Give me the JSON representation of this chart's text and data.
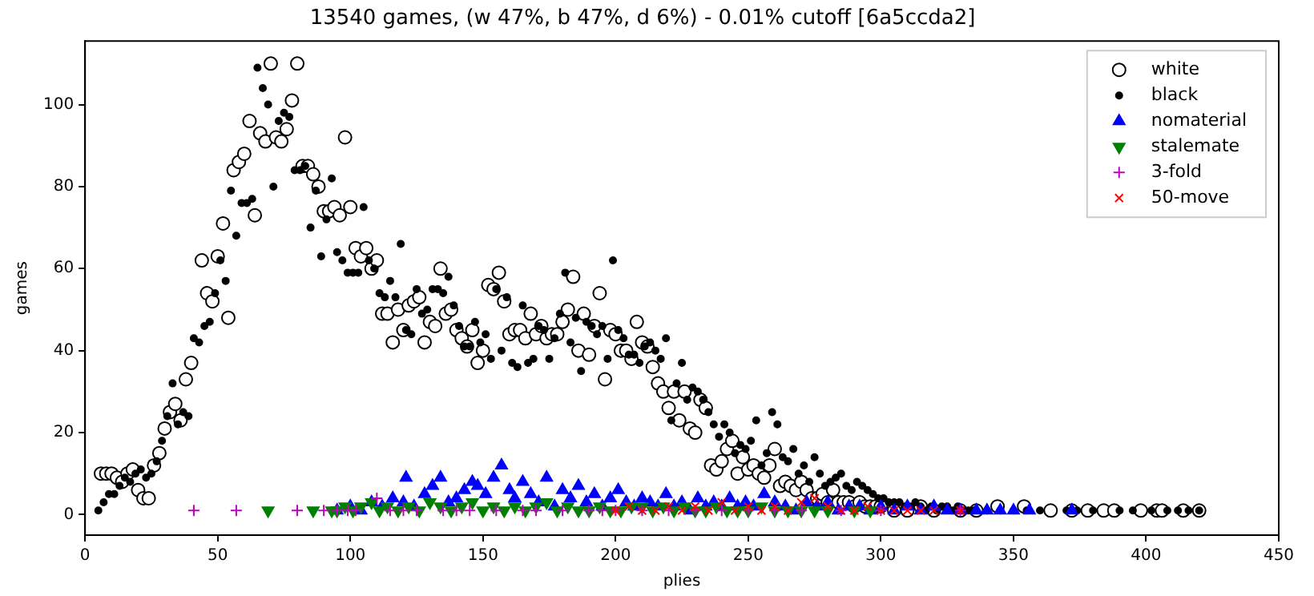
{
  "chart_data": {
    "type": "scatter",
    "title": "13540 games, (w 47%, b 47%, d 6%) - 0.01% cutoff [6a5ccda2]",
    "xlabel": "plies",
    "ylabel": "games",
    "xlim": [
      0,
      450
    ],
    "xticks": [
      0,
      50,
      100,
      150,
      200,
      250,
      300,
      350,
      400,
      450
    ],
    "ylim": [
      -5,
      115.5
    ],
    "yticks": [
      0,
      20,
      40,
      60,
      80,
      100
    ],
    "grid": false,
    "legend": "top right",
    "series": [
      {
        "name": "white",
        "color": "#ffffff",
        "marker": "circle",
        "x": [
          6,
          8,
          10,
          12,
          14,
          16,
          18,
          20,
          22,
          24,
          26,
          28,
          30,
          32,
          34,
          36,
          38,
          40,
          44,
          46,
          48,
          50,
          52,
          54,
          56,
          58,
          60,
          62,
          64,
          66,
          68,
          70,
          72,
          74,
          76,
          78,
          80,
          82,
          84,
          86,
          88,
          90,
          92,
          94,
          96,
          98,
          100,
          102,
          104,
          106,
          108,
          110,
          112,
          114,
          116,
          118,
          120,
          122,
          124,
          126,
          128,
          130,
          132,
          134,
          136,
          138,
          140,
          142,
          144,
          146,
          148,
          150,
          152,
          154,
          156,
          158,
          160,
          162,
          164,
          166,
          168,
          170,
          172,
          174,
          176,
          178,
          180,
          182,
          184,
          186,
          188,
          190,
          192,
          194,
          196,
          198,
          200,
          202,
          204,
          206,
          208,
          210,
          212,
          214,
          216,
          218,
          220,
          222,
          224,
          226,
          228,
          230,
          232,
          234,
          236,
          238,
          240,
          242,
          244,
          246,
          248,
          250,
          252,
          254,
          256,
          258,
          260,
          262,
          264,
          266,
          268,
          270,
          272,
          274,
          276,
          278,
          280,
          282,
          284,
          286,
          288,
          290,
          292,
          294,
          296,
          298,
          300,
          305,
          310,
          315,
          320,
          330,
          336,
          344,
          354,
          364,
          372,
          378,
          384,
          388,
          398,
          404,
          406,
          414,
          420
        ],
        "values": [
          10,
          10,
          10,
          9,
          8,
          10,
          11,
          6,
          4,
          4,
          12,
          15,
          21,
          25,
          27,
          23,
          33,
          37,
          62,
          54,
          52,
          63,
          71,
          48,
          84,
          86,
          88,
          96,
          73,
          93,
          91,
          110,
          92,
          91,
          94,
          101,
          110,
          85,
          85,
          83,
          80,
          74,
          74,
          75,
          73,
          92,
          75,
          65,
          63,
          65,
          60,
          62,
          49,
          49,
          42,
          50,
          45,
          51,
          52,
          53,
          42,
          47,
          46,
          60,
          49,
          50,
          45,
          43,
          41,
          45,
          37,
          40,
          56,
          55,
          59,
          52,
          44,
          45,
          45,
          43,
          49,
          44,
          46,
          43,
          44,
          44,
          47,
          50,
          58,
          40,
          49,
          39,
          46,
          54,
          33,
          45,
          44,
          40,
          40,
          38,
          47,
          42,
          41,
          36,
          32,
          30,
          26,
          30,
          23,
          30,
          21,
          20,
          28,
          26,
          12,
          11,
          13,
          16,
          18,
          10,
          14,
          11,
          12,
          10,
          9,
          12,
          16,
          7,
          8,
          7,
          6,
          8,
          6,
          4,
          4,
          5,
          3,
          6,
          3,
          3,
          3,
          2,
          3,
          2,
          2,
          2,
          2,
          1,
          1,
          2,
          1,
          1,
          1,
          2,
          2,
          1,
          1,
          1,
          1,
          1,
          1,
          1,
          1,
          1,
          1
        ]
      },
      {
        "name": "black",
        "color": "#000000",
        "marker": "point",
        "x": [
          5,
          7,
          9,
          11,
          13,
          15,
          17,
          19,
          21,
          23,
          25,
          27,
          29,
          31,
          33,
          35,
          37,
          39,
          41,
          43,
          45,
          47,
          49,
          51,
          53,
          55,
          57,
          59,
          61,
          63,
          65,
          67,
          69,
          71,
          73,
          75,
          77,
          79,
          81,
          83,
          85,
          87,
          89,
          91,
          93,
          95,
          97,
          99,
          101,
          103,
          105,
          107,
          109,
          111,
          113,
          115,
          117,
          119,
          121,
          123,
          125,
          127,
          129,
          131,
          133,
          135,
          137,
          139,
          141,
          143,
          145,
          147,
          149,
          151,
          153,
          155,
          157,
          159,
          161,
          163,
          165,
          167,
          169,
          171,
          173,
          175,
          177,
          179,
          181,
          183,
          185,
          187,
          189,
          191,
          193,
          195,
          197,
          199,
          201,
          203,
          205,
          207,
          209,
          211,
          213,
          215,
          217,
          219,
          221,
          223,
          225,
          227,
          229,
          231,
          233,
          235,
          237,
          239,
          241,
          243,
          245,
          247,
          249,
          251,
          253,
          255,
          257,
          259,
          261,
          263,
          265,
          267,
          269,
          271,
          273,
          275,
          277,
          279,
          281,
          283,
          285,
          287,
          289,
          291,
          293,
          295,
          297,
          299,
          301,
          303,
          305,
          307,
          309,
          311,
          313,
          315,
          317,
          319,
          321,
          323,
          325,
          327,
          329,
          331,
          333,
          335,
          340,
          345,
          350,
          355,
          360,
          370,
          374,
          380,
          390,
          395,
          402,
          408,
          412,
          416,
          420
        ],
        "values": [
          1,
          3,
          5,
          5,
          7,
          9,
          8,
          10,
          11,
          9,
          10,
          13,
          18,
          24,
          32,
          22,
          25,
          24,
          43,
          42,
          46,
          47,
          54,
          62,
          57,
          79,
          68,
          76,
          76,
          77,
          109,
          104,
          100,
          80,
          96,
          98,
          97,
          84,
          84,
          85,
          70,
          79,
          63,
          72,
          82,
          64,
          62,
          59,
          59,
          59,
          75,
          62,
          60,
          54,
          53,
          57,
          53,
          66,
          45,
          44,
          55,
          49,
          50,
          55,
          55,
          54,
          58,
          51,
          46,
          41,
          41,
          47,
          42,
          44,
          38,
          55,
          40,
          53,
          37,
          36,
          51,
          37,
          38,
          46,
          45,
          38,
          43,
          49,
          59,
          42,
          48,
          35,
          47,
          46,
          44,
          46,
          38,
          62,
          45,
          43,
          39,
          39,
          37,
          41,
          42,
          40,
          38,
          43,
          23,
          32,
          37,
          28,
          31,
          30,
          28,
          25,
          22,
          19,
          22,
          20,
          15,
          17,
          16,
          18,
          23,
          12,
          15,
          25,
          22,
          14,
          13,
          16,
          10,
          12,
          8,
          14,
          10,
          7,
          8,
          9,
          10,
          7,
          6,
          8,
          7,
          6,
          5,
          4,
          4,
          3,
          3,
          3,
          2,
          2,
          3,
          2,
          1,
          2,
          1,
          2,
          2,
          1,
          2,
          1,
          1,
          1,
          1,
          1,
          1,
          1,
          1,
          1,
          1,
          1,
          1,
          1,
          1,
          1,
          1,
          1,
          1
        ]
      },
      {
        "name": "nomaterial",
        "color": "#0000ff",
        "marker": "triangle",
        "x": [
          95,
          100,
          104,
          108,
          112,
          116,
          120,
          121,
          124,
          128,
          131,
          134,
          137,
          140,
          143,
          146,
          148,
          151,
          154,
          157,
          160,
          162,
          165,
          168,
          171,
          174,
          177,
          180,
          183,
          186,
          189,
          192,
          195,
          198,
          201,
          204,
          207,
          210,
          213,
          216,
          219,
          222,
          225,
          228,
          231,
          234,
          237,
          240,
          243,
          246,
          249,
          252,
          256,
          260,
          264,
          268,
          272,
          276,
          280,
          284,
          288,
          292,
          296,
          300,
          305,
          310,
          315,
          320,
          325,
          330,
          336,
          340,
          345,
          350,
          356,
          372
        ],
        "values": [
          1,
          2,
          1,
          3,
          2,
          4,
          3,
          9,
          2,
          5,
          7,
          9,
          3,
          4,
          6,
          8,
          7,
          5,
          9,
          12,
          6,
          4,
          8,
          5,
          3,
          9,
          2,
          6,
          4,
          7,
          3,
          5,
          2,
          4,
          6,
          3,
          2,
          4,
          3,
          2,
          5,
          2,
          3,
          1,
          4,
          2,
          3,
          2,
          4,
          2,
          3,
          2,
          5,
          3,
          2,
          1,
          3,
          2,
          3,
          1,
          2,
          2,
          1,
          2,
          1,
          2,
          1,
          2,
          1,
          1,
          1,
          1,
          1,
          1,
          1,
          1
        ]
      },
      {
        "name": "stalemate",
        "color": "#008000",
        "marker": "triangle_down",
        "x": [
          69,
          86,
          93,
          95,
          98,
          101,
          104,
          108,
          111,
          114,
          118,
          122,
          126,
          130,
          134,
          138,
          142,
          146,
          150,
          154,
          158,
          162,
          166,
          170,
          174,
          178,
          182,
          186,
          190,
          194,
          198,
          202,
          206,
          210,
          214,
          218,
          222,
          226,
          230,
          234,
          238,
          242,
          246,
          250,
          255,
          260,
          265,
          270,
          275,
          280,
          290,
          296
        ],
        "values": [
          1,
          1,
          1,
          1,
          2,
          1,
          2,
          3,
          1,
          2,
          1,
          2,
          1,
          3,
          2,
          1,
          2,
          3,
          1,
          2,
          1,
          2,
          1,
          2,
          3,
          1,
          2,
          1,
          1,
          2,
          1,
          1,
          2,
          2,
          1,
          2,
          1,
          2,
          1,
          1,
          2,
          1,
          1,
          1,
          2,
          1,
          1,
          1,
          1,
          1,
          1,
          1
        ]
      },
      {
        "name": "3-fold",
        "color": "#bf00bf",
        "marker": "plus",
        "x": [
          41,
          57,
          80,
          90,
          95,
          99,
          102,
          110,
          115,
          120,
          125,
          135,
          140,
          145,
          155,
          165,
          170,
          180,
          190,
          195,
          200,
          210,
          220,
          230,
          240,
          250,
          260,
          270,
          285,
          300,
          330
        ],
        "values": [
          1,
          1,
          1,
          1,
          1,
          1,
          1,
          4,
          1,
          1,
          1,
          1,
          1,
          1,
          1,
          1,
          1,
          1,
          1,
          1,
          1,
          1,
          1,
          1,
          1,
          1,
          1,
          1,
          1,
          1,
          1
        ]
      },
      {
        "name": "50-move",
        "color": "#ff0000",
        "marker": "x",
        "x": [
          200,
          205,
          210,
          215,
          220,
          225,
          230,
          235,
          240,
          245,
          250,
          255,
          260,
          265,
          270,
          275,
          280,
          285,
          290,
          295,
          300,
          305,
          310,
          315,
          320,
          330
        ],
        "values": [
          1,
          2,
          1,
          1,
          2,
          1,
          2,
          1,
          3,
          1,
          2,
          1,
          2,
          1,
          3,
          4,
          2,
          1,
          1,
          2,
          1,
          1,
          1,
          1,
          1,
          1
        ]
      }
    ]
  }
}
